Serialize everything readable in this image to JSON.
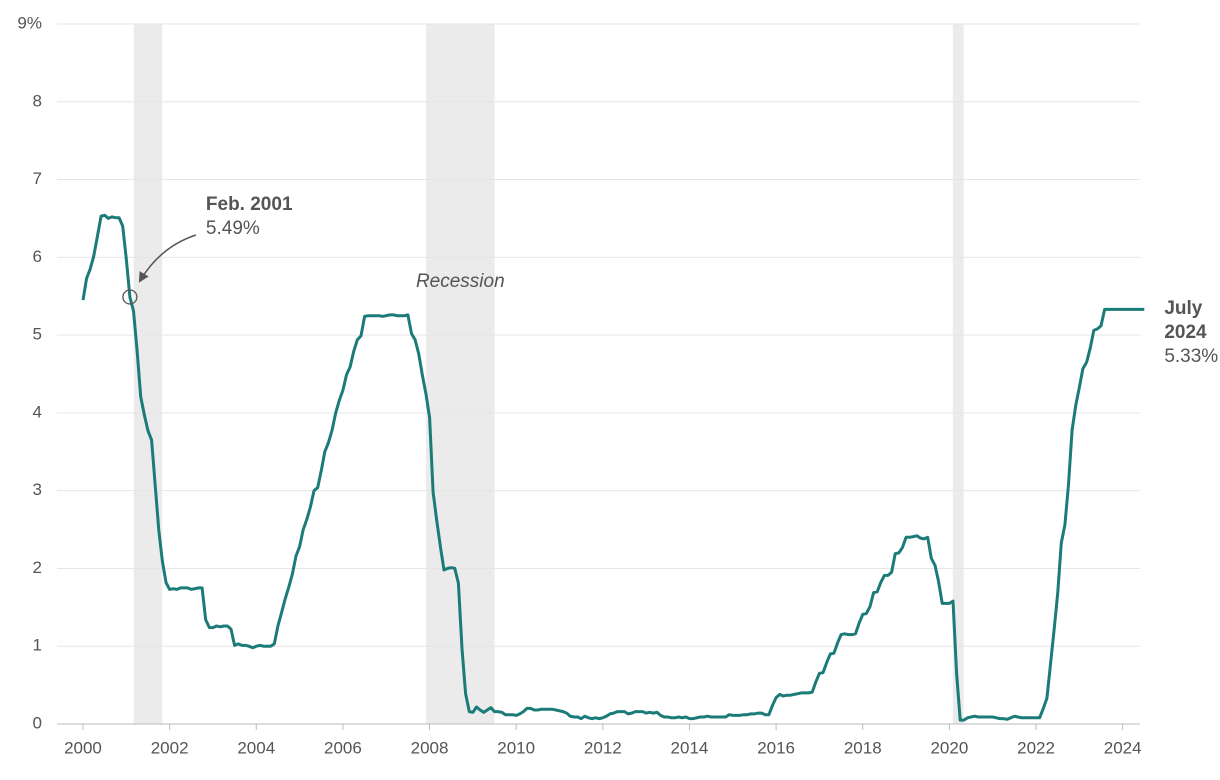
{
  "chart_data": {
    "type": "line",
    "x": [
      2000,
      2000.083,
      2000.167,
      2000.25,
      2000.333,
      2000.417,
      2000.5,
      2000.583,
      2000.667,
      2000.75,
      2000.833,
      2000.917,
      2001,
      2001.083,
      2001.167,
      2001.25,
      2001.333,
      2001.417,
      2001.5,
      2001.583,
      2001.667,
      2001.75,
      2001.833,
      2001.917,
      2002,
      2002.083,
      2002.167,
      2002.25,
      2002.333,
      2002.417,
      2002.5,
      2002.583,
      2002.667,
      2002.75,
      2002.833,
      2002.917,
      2003,
      2003.083,
      2003.167,
      2003.25,
      2003.333,
      2003.417,
      2003.5,
      2003.583,
      2003.667,
      2003.75,
      2003.833,
      2003.917,
      2004,
      2004.083,
      2004.167,
      2004.25,
      2004.333,
      2004.417,
      2004.5,
      2004.583,
      2004.667,
      2004.75,
      2004.833,
      2004.917,
      2005,
      2005.083,
      2005.167,
      2005.25,
      2005.333,
      2005.417,
      2005.5,
      2005.583,
      2005.667,
      2005.75,
      2005.833,
      2005.917,
      2006,
      2006.083,
      2006.167,
      2006.25,
      2006.333,
      2006.417,
      2006.5,
      2006.583,
      2006.667,
      2006.75,
      2006.833,
      2006.917,
      2007,
      2007.083,
      2007.167,
      2007.25,
      2007.333,
      2007.417,
      2007.5,
      2007.583,
      2007.667,
      2007.75,
      2007.833,
      2007.917,
      2008,
      2008.083,
      2008.167,
      2008.25,
      2008.333,
      2008.417,
      2008.5,
      2008.583,
      2008.667,
      2008.75,
      2008.833,
      2008.917,
      2009,
      2009.083,
      2009.167,
      2009.25,
      2009.333,
      2009.417,
      2009.5,
      2009.583,
      2009.667,
      2009.75,
      2009.833,
      2009.917,
      2010,
      2010.083,
      2010.167,
      2010.25,
      2010.333,
      2010.417,
      2010.5,
      2010.583,
      2010.667,
      2010.75,
      2010.833,
      2010.917,
      2011,
      2011.083,
      2011.167,
      2011.25,
      2011.333,
      2011.417,
      2011.5,
      2011.583,
      2011.667,
      2011.75,
      2011.833,
      2011.917,
      2012,
      2012.083,
      2012.167,
      2012.25,
      2012.333,
      2012.417,
      2012.5,
      2012.583,
      2012.667,
      2012.75,
      2012.833,
      2012.917,
      2013,
      2013.083,
      2013.167,
      2013.25,
      2013.333,
      2013.417,
      2013.5,
      2013.583,
      2013.667,
      2013.75,
      2013.833,
      2013.917,
      2014,
      2014.083,
      2014.167,
      2014.25,
      2014.333,
      2014.417,
      2014.5,
      2014.583,
      2014.667,
      2014.75,
      2014.833,
      2014.917,
      2015,
      2015.083,
      2015.167,
      2015.25,
      2015.333,
      2015.417,
      2015.5,
      2015.583,
      2015.667,
      2015.75,
      2015.833,
      2015.917,
      2016,
      2016.083,
      2016.167,
      2016.25,
      2016.333,
      2016.417,
      2016.5,
      2016.583,
      2016.667,
      2016.75,
      2016.833,
      2016.917,
      2017,
      2017.083,
      2017.167,
      2017.25,
      2017.333,
      2017.417,
      2017.5,
      2017.583,
      2017.667,
      2017.75,
      2017.833,
      2017.917,
      2018,
      2018.083,
      2018.167,
      2018.25,
      2018.333,
      2018.417,
      2018.5,
      2018.583,
      2018.667,
      2018.75,
      2018.833,
      2018.917,
      2019,
      2019.083,
      2019.167,
      2019.25,
      2019.333,
      2019.417,
      2019.5,
      2019.583,
      2019.667,
      2019.75,
      2019.833,
      2019.917,
      2020,
      2020.083,
      2020.167,
      2020.25,
      2020.333,
      2020.417,
      2020.5,
      2020.583,
      2020.667,
      2020.75,
      2020.833,
      2020.917,
      2021,
      2021.083,
      2021.167,
      2021.25,
      2021.333,
      2021.417,
      2021.5,
      2021.583,
      2021.667,
      2021.75,
      2021.833,
      2021.917,
      2022,
      2022.083,
      2022.167,
      2022.25,
      2022.333,
      2022.417,
      2022.5,
      2022.583,
      2022.667,
      2022.75,
      2022.833,
      2022.917,
      2023,
      2023.083,
      2023.167,
      2023.25,
      2023.333,
      2023.417,
      2023.5,
      2023.583,
      2023.667,
      2023.75,
      2023.833,
      2023.917,
      2024,
      2024.083,
      2024.167,
      2024.25,
      2024.333,
      2024.417,
      2024.5
    ],
    "series": [
      {
        "color": "#1b7b78",
        "values": [
          5.45,
          5.73,
          5.85,
          6.02,
          6.27,
          6.53,
          6.54,
          6.5,
          6.52,
          6.51,
          6.51,
          6.4,
          5.98,
          5.49,
          5.31,
          4.8,
          4.21,
          3.97,
          3.77,
          3.65,
          3.07,
          2.49,
          2.09,
          1.82,
          1.73,
          1.74,
          1.73,
          1.75,
          1.75,
          1.75,
          1.73,
          1.74,
          1.75,
          1.75,
          1.34,
          1.24,
          1.24,
          1.26,
          1.25,
          1.26,
          1.26,
          1.22,
          1.01,
          1.03,
          1.01,
          1.01,
          1.0,
          0.98,
          1.0,
          1.01,
          1.0,
          1.0,
          1.0,
          1.03,
          1.26,
          1.43,
          1.61,
          1.76,
          1.93,
          2.16,
          2.28,
          2.5,
          2.63,
          2.79,
          3.0,
          3.04,
          3.26,
          3.5,
          3.62,
          3.78,
          4.0,
          4.16,
          4.29,
          4.49,
          4.59,
          4.79,
          4.94,
          4.99,
          5.24,
          5.25,
          5.25,
          5.25,
          5.25,
          5.24,
          5.25,
          5.26,
          5.26,
          5.25,
          5.25,
          5.25,
          5.26,
          5.02,
          4.94,
          4.76,
          4.49,
          4.24,
          3.94,
          2.98,
          2.61,
          2.28,
          1.98,
          2.0,
          2.01,
          2.0,
          1.81,
          0.97,
          0.39,
          0.16,
          0.15,
          0.22,
          0.18,
          0.15,
          0.18,
          0.21,
          0.16,
          0.16,
          0.15,
          0.12,
          0.12,
          0.12,
          0.11,
          0.13,
          0.16,
          0.2,
          0.2,
          0.18,
          0.18,
          0.19,
          0.19,
          0.19,
          0.19,
          0.18,
          0.17,
          0.16,
          0.14,
          0.1,
          0.09,
          0.09,
          0.07,
          0.1,
          0.08,
          0.07,
          0.08,
          0.07,
          0.08,
          0.1,
          0.13,
          0.14,
          0.16,
          0.16,
          0.16,
          0.13,
          0.14,
          0.16,
          0.16,
          0.16,
          0.14,
          0.15,
          0.14,
          0.15,
          0.11,
          0.09,
          0.09,
          0.08,
          0.08,
          0.09,
          0.08,
          0.09,
          0.07,
          0.07,
          0.08,
          0.09,
          0.09,
          0.1,
          0.09,
          0.09,
          0.09,
          0.09,
          0.09,
          0.12,
          0.11,
          0.11,
          0.11,
          0.12,
          0.12,
          0.13,
          0.13,
          0.14,
          0.14,
          0.12,
          0.12,
          0.24,
          0.34,
          0.38,
          0.36,
          0.37,
          0.37,
          0.38,
          0.39,
          0.4,
          0.4,
          0.4,
          0.41,
          0.54,
          0.65,
          0.66,
          0.79,
          0.9,
          0.91,
          1.04,
          1.15,
          1.16,
          1.15,
          1.15,
          1.16,
          1.3,
          1.41,
          1.42,
          1.51,
          1.69,
          1.7,
          1.82,
          1.91,
          1.91,
          1.95,
          2.19,
          2.2,
          2.27,
          2.4,
          2.4,
          2.41,
          2.42,
          2.39,
          2.38,
          2.4,
          2.13,
          2.04,
          1.83,
          1.55,
          1.55,
          1.55,
          1.58,
          0.65,
          0.05,
          0.05,
          0.08,
          0.09,
          0.1,
          0.09,
          0.09,
          0.09,
          0.09,
          0.09,
          0.08,
          0.07,
          0.07,
          0.06,
          0.08,
          0.1,
          0.09,
          0.08,
          0.08,
          0.08,
          0.08,
          0.08,
          0.08,
          0.2,
          0.33,
          0.77,
          1.21,
          1.68,
          2.33,
          2.56,
          3.08,
          3.78,
          4.1,
          4.33,
          4.57,
          4.65,
          4.83,
          5.06,
          5.08,
          5.12,
          5.33,
          5.33,
          5.33,
          5.33,
          5.33,
          5.33,
          5.33,
          5.33,
          5.33,
          5.33,
          5.33,
          5.33
        ]
      }
    ],
    "xlim": [
      1999.4,
      2024.4
    ],
    "xticks": [
      2000,
      2002,
      2004,
      2006,
      2008,
      2010,
      2012,
      2014,
      2016,
      2018,
      2020,
      2022,
      2024
    ],
    "ylim": [
      0,
      9
    ],
    "yticks": [
      0,
      1,
      2,
      3,
      4,
      5,
      6,
      7,
      8,
      {
        "value": 9,
        "label": "9%"
      }
    ],
    "grid": true,
    "recessions": [
      [
        2001.17,
        2001.83
      ],
      [
        2007.92,
        2009.5
      ],
      [
        2020.08,
        2020.33
      ]
    ],
    "recession_color": "#ebebeb",
    "recession_label": "Recession",
    "annotations": [
      {
        "label": "Feb. 2001",
        "value_label": "5.49%",
        "x": 2001.083,
        "y": 5.49
      },
      {
        "label": "July 2024",
        "value_label": "5.33%",
        "x": 2024.5,
        "y": 5.33
      }
    ]
  }
}
